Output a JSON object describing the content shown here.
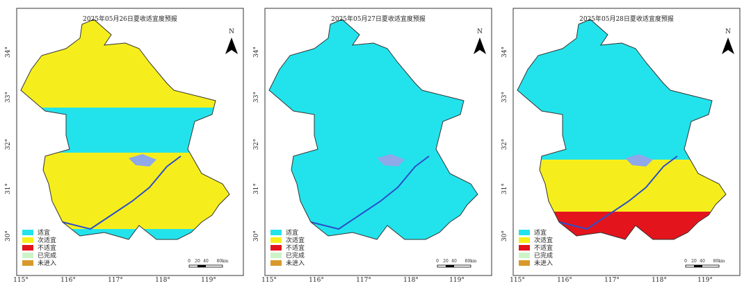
{
  "panels": [
    {
      "title": "2025年05月26日夏收适宜度预报"
    },
    {
      "title": "2025年05月27日夏收适宜度预报"
    },
    {
      "title": "2025年05月28日夏收适宜度预报"
    }
  ],
  "x_ticks": [
    "115°",
    "116°",
    "117°",
    "118°",
    "119°"
  ],
  "y_ticks": [
    "34°",
    "33°",
    "32°",
    "31°",
    "30°"
  ],
  "north": "N",
  "legend": [
    {
      "label": "适宜",
      "color": "#22e3ec"
    },
    {
      "label": "次适宜",
      "color": "#f6ee1c"
    },
    {
      "label": "不适宜",
      "color": "#e3141c"
    },
    {
      "label": "已完成",
      "color": "#ccf4c8"
    },
    {
      "label": "未进入",
      "color": "#d8992a"
    }
  ],
  "scale": [
    "0",
    "20",
    "40",
    "80km"
  ]
}
